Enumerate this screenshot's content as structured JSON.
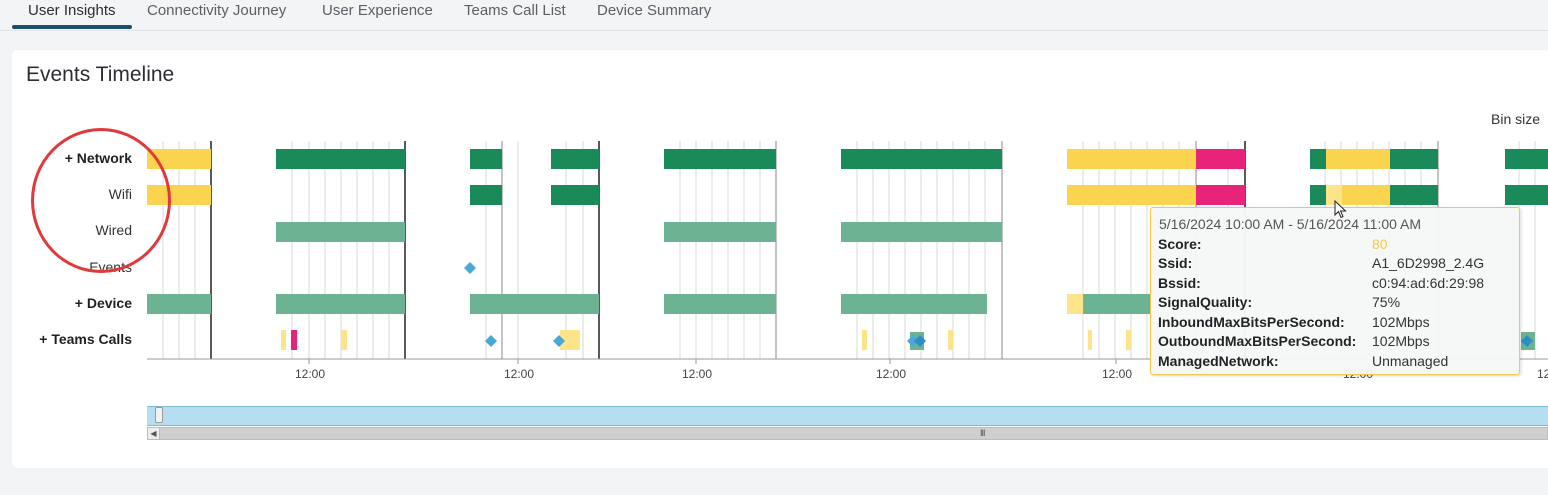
{
  "tabs": [
    {
      "label": "User Insights",
      "active": true
    },
    {
      "label": "Connectivity Journey",
      "active": false
    },
    {
      "label": "User Experience",
      "active": false
    },
    {
      "label": "Teams Call List",
      "active": false
    },
    {
      "label": "Device Summary",
      "active": false
    }
  ],
  "card": {
    "title": "Events Timeline",
    "bin_size_label": "Bin size"
  },
  "rows": [
    {
      "label": "+ Network",
      "group": true
    },
    {
      "label": "Wifi",
      "group": false
    },
    {
      "label": "Wired",
      "group": false
    },
    {
      "label": "Events",
      "group": false
    },
    {
      "label": "+ Device",
      "group": true
    },
    {
      "label": "+ Teams Calls",
      "group": true
    }
  ],
  "x_axis": {
    "tick_labels": [
      "12:00",
      "12:00",
      "12:00",
      "12:00",
      "12:00",
      "12:00",
      "12"
    ]
  },
  "colors": {
    "good": "#1b8a5a",
    "good_light": "#6cb394",
    "fair": "#fbd44f",
    "fair_light": "#fce48a",
    "poor": "#e8247a",
    "event": "#4aa8d8",
    "highlight": "#e0393b"
  },
  "tooltip": {
    "title": "5/16/2024 10:00 AM - 5/16/2024 11:00 AM",
    "fields": [
      {
        "key": "Score:",
        "value": "80"
      },
      {
        "key": "Ssid:",
        "value": "A1_6D2998_2.4G"
      },
      {
        "key": "Bssid:",
        "value": "c0:94:ad:6d:29:98"
      },
      {
        "key": "SignalQuality:",
        "value": "75%"
      },
      {
        "key": "InboundMaxBitsPerSecond:",
        "value": "102Mbps"
      },
      {
        "key": "OutboundMaxBitsPerSecond:",
        "value": "102Mbps"
      },
      {
        "key": "ManagedNetwork:",
        "value": "Unmanaged"
      }
    ]
  },
  "navigator": {
    "scroll_grip": "III"
  }
}
